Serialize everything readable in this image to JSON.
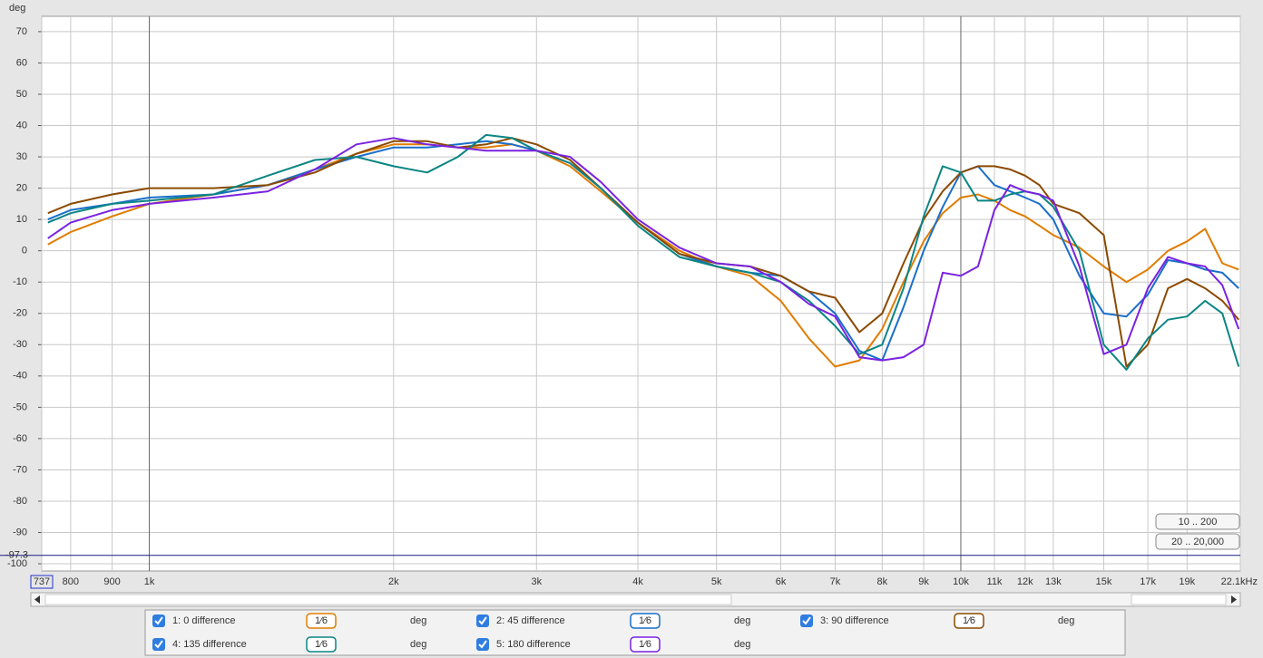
{
  "chart_data": {
    "type": "line",
    "y_label": "deg",
    "log_x": true,
    "grid": true,
    "xlim": [
      737,
      22100
    ],
    "ylim": [
      -102.3,
      74.9
    ],
    "xticks": [
      {
        "value": 737,
        "label": "737"
      },
      800,
      900,
      {
        "value": 1000,
        "label": "1k"
      },
      {
        "value": 2000,
        "label": "2k"
      },
      {
        "value": 3000,
        "label": "3k"
      },
      {
        "value": 4000,
        "label": "4k"
      },
      {
        "value": 5000,
        "label": "5k"
      },
      {
        "value": 6000,
        "label": "6k"
      },
      {
        "value": 7000,
        "label": "7k"
      },
      {
        "value": 8000,
        "label": "8k"
      },
      {
        "value": 9000,
        "label": "9k"
      },
      {
        "value": 10000,
        "label": "10k"
      },
      {
        "value": 11000,
        "label": "11k"
      },
      {
        "value": 12000,
        "label": "12k"
      },
      {
        "value": 13000,
        "label": "13k"
      },
      {
        "value": 15000,
        "label": "15k"
      },
      {
        "value": 17000,
        "label": "17k"
      },
      {
        "value": 19000,
        "label": "19k"
      },
      {
        "value": 22100,
        "label": "22.1kHz"
      }
    ],
    "yticks": [
      70,
      60,
      50,
      40,
      30,
      20,
      10,
      0,
      -10,
      -20,
      -30,
      -40,
      -50,
      -60,
      -70,
      -80,
      -90,
      -100
    ],
    "cursor_y": {
      "value": -97.3,
      "label": "-97.3"
    },
    "x": [
      750,
      800,
      900,
      1000,
      1200,
      1400,
      1600,
      1800,
      2000,
      2200,
      2400,
      2600,
      2800,
      3000,
      3300,
      3600,
      4000,
      4500,
      5000,
      5500,
      6000,
      6500,
      7000,
      7500,
      8000,
      8500,
      9000,
      9500,
      10000,
      10500,
      11000,
      11500,
      12000,
      12500,
      13000,
      14000,
      15000,
      16000,
      17000,
      18000,
      19000,
      20000,
      21000,
      22000
    ],
    "series": [
      {
        "name": "1: 0 difference",
        "color": "#e07c00",
        "smoothing": "1⁄6",
        "unit": "deg",
        "values": [
          2,
          6,
          11,
          15,
          18,
          21,
          26,
          31,
          34,
          34,
          33,
          33,
          34,
          32,
          27,
          19,
          9,
          0,
          -5,
          -8,
          -16,
          -28,
          -37,
          -35,
          -25,
          -10,
          3,
          12,
          17,
          18,
          16,
          13,
          11,
          8,
          5,
          1,
          -5,
          -10,
          -6,
          0,
          3,
          7,
          -4,
          -6
        ]
      },
      {
        "name": "2: 45 difference",
        "color": "#1a6fc9",
        "smoothing": "1⁄6",
        "unit": "deg",
        "values": [
          10,
          13,
          15,
          17,
          18,
          21,
          26,
          30,
          33,
          33,
          34,
          35,
          34,
          32,
          28,
          20,
          9,
          -1,
          -5,
          -7,
          -8,
          -13,
          -20,
          -32,
          -35,
          -18,
          0,
          14,
          25,
          27,
          21,
          19,
          17,
          15,
          10,
          -8,
          -20,
          -21,
          -14,
          -3,
          -4,
          -6,
          -7,
          -12
        ]
      },
      {
        "name": "3: 90 difference",
        "color": "#8b4a00",
        "smoothing": "1⁄6",
        "unit": "deg",
        "values": [
          12,
          15,
          18,
          20,
          20,
          21,
          25,
          31,
          35,
          35,
          33,
          34,
          36,
          34,
          29,
          20,
          9,
          -1,
          -4,
          -5,
          -8,
          -13,
          -15,
          -26,
          -20,
          -4,
          10,
          19,
          25,
          27,
          27,
          26,
          24,
          21,
          15,
          12,
          5,
          -37,
          -30,
          -12,
          -9,
          -12,
          -16,
          -22
        ]
      },
      {
        "name": "4: 135 difference",
        "color": "#0b8585",
        "smoothing": "1⁄6",
        "unit": "deg",
        "values": [
          9,
          12,
          15,
          16,
          18,
          24,
          29,
          30,
          27,
          25,
          30,
          37,
          36,
          32,
          28,
          20,
          8,
          -2,
          -5,
          -7,
          -10,
          -16,
          -24,
          -33,
          -30,
          -12,
          11,
          27,
          25,
          16,
          16,
          18,
          19,
          18,
          14,
          0,
          -30,
          -38,
          -28,
          -22,
          -21,
          -16,
          -20,
          -37
        ]
      },
      {
        "name": "5: 180 difference",
        "color": "#7a22e0",
        "smoothing": "1⁄6",
        "unit": "deg",
        "values": [
          4,
          9,
          13,
          15,
          17,
          19,
          26,
          34,
          36,
          34,
          33,
          32,
          32,
          32,
          30,
          22,
          10,
          1,
          -4,
          -5,
          -10,
          -17,
          -21,
          -34,
          -35,
          -34,
          -30,
          -7,
          -8,
          -5,
          13,
          21,
          19,
          18,
          16,
          -5,
          -33,
          -30,
          -12,
          -2,
          -4,
          -5,
          -11,
          -25
        ]
      }
    ]
  },
  "range_buttons": [
    "10 .. 200",
    "20 .. 20,000"
  ]
}
